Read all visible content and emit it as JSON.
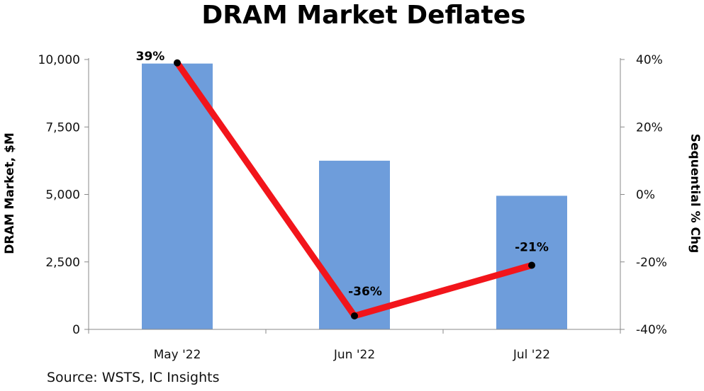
{
  "chart_data": {
    "type": "bar+line",
    "title": "DRAM Market Deflates",
    "categories": [
      "May '22",
      "Jun '22",
      "Jul '22"
    ],
    "series": [
      {
        "name": "DRAM Market, $M",
        "type": "bar",
        "axis": "left",
        "color": "#6e9ddb",
        "values": [
          9850,
          6250,
          4950
        ]
      },
      {
        "name": "Sequential % Chg",
        "type": "line",
        "axis": "right",
        "color": "#f2151b",
        "values": [
          39,
          -36,
          -21
        ],
        "labels": [
          "39%",
          "-36%",
          "-21%"
        ]
      }
    ],
    "ylabel": "DRAM Market, $M",
    "y2label": "Sequential % Chg",
    "ylim": [
      0,
      10000
    ],
    "y2lim": [
      -40,
      40
    ],
    "yticks": [
      "0",
      "2,500",
      "5,000",
      "7,500",
      "10,000"
    ],
    "y2ticks": [
      "-40%",
      "-20%",
      "0%",
      "20%",
      "40%"
    ],
    "grid": false,
    "legend": "none"
  },
  "source": "Source:  WSTS, IC Insights"
}
